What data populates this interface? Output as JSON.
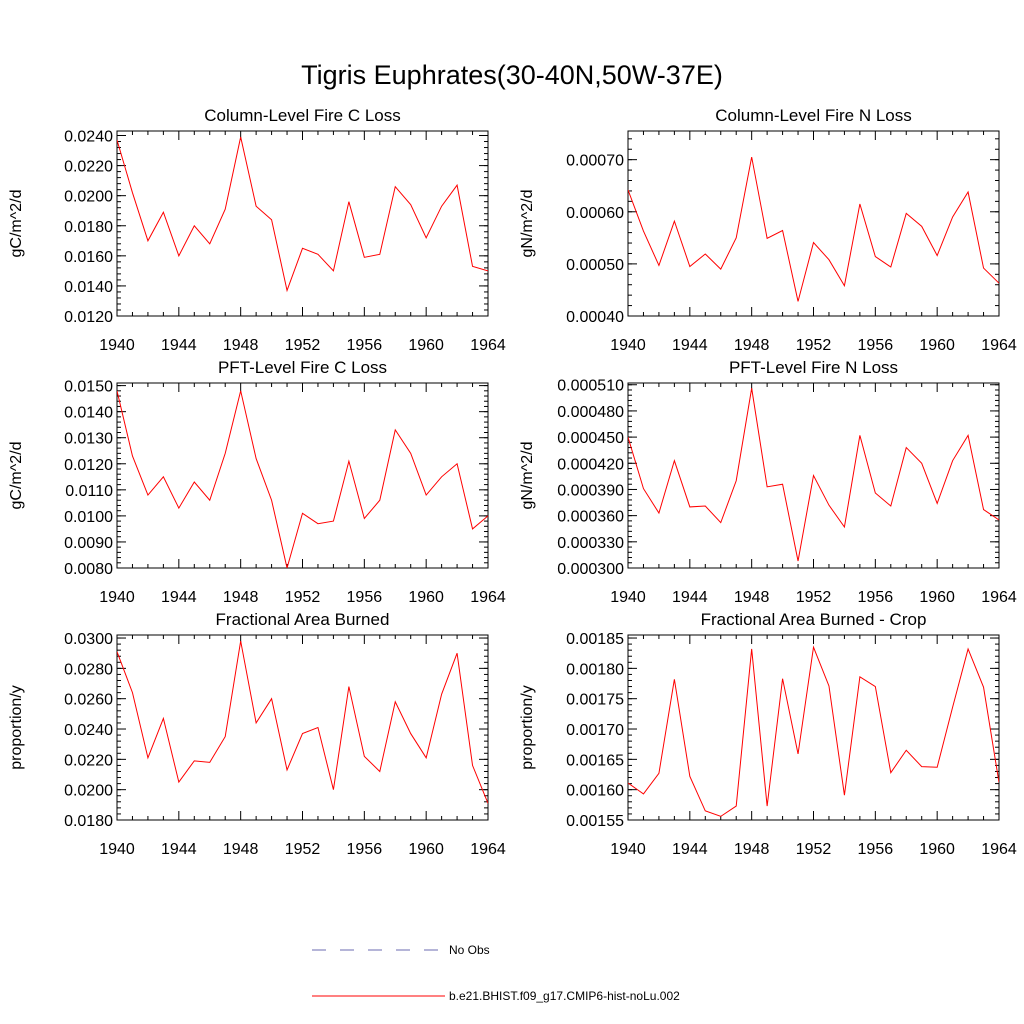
{
  "title": "Tigris Euphrates(30-40N,50W-37E)",
  "colors": {
    "model": "#ff0000",
    "obs": "#6b6bb0",
    "axis": "#000000"
  },
  "legend": {
    "obs_label": "No Obs",
    "model_label": "b.e21.BHIST.f09_g17.CMIP6-hist-noLu.002"
  },
  "chart_data": [
    {
      "type": "line",
      "title": "Column-Level Fire C Loss",
      "ylabel": "gC/m^2/d",
      "x": [
        1940,
        1941,
        1942,
        1943,
        1944,
        1945,
        1946,
        1947,
        1948,
        1949,
        1950,
        1951,
        1952,
        1953,
        1954,
        1955,
        1956,
        1957,
        1958,
        1959,
        1960,
        1961,
        1962,
        1963,
        1964
      ],
      "xlim": [
        1940,
        1964
      ],
      "xticks": [
        "1940",
        "1944",
        "1948",
        "1952",
        "1956",
        "1960",
        "1964"
      ],
      "ylim": [
        0.012,
        0.0243
      ],
      "yticks": [
        "0.0120",
        "0.0140",
        "0.0160",
        "0.0180",
        "0.0200",
        "0.0220",
        "0.0240"
      ],
      "series": [
        {
          "values": [
            0.0237,
            0.0202,
            0.017,
            0.0189,
            0.016,
            0.018,
            0.0168,
            0.0191,
            0.0239,
            0.0193,
            0.0184,
            0.0137,
            0.0165,
            0.0161,
            0.015,
            0.0196,
            0.0159,
            0.0161,
            0.0206,
            0.0194,
            0.0172,
            0.0193,
            0.0207,
            0.0153,
            0.015
          ]
        }
      ]
    },
    {
      "type": "line",
      "title": "Column-Level Fire N Loss",
      "ylabel": "gN/m^2/d",
      "x": [
        1940,
        1941,
        1942,
        1943,
        1944,
        1945,
        1946,
        1947,
        1948,
        1949,
        1950,
        1951,
        1952,
        1953,
        1954,
        1955,
        1956,
        1957,
        1958,
        1959,
        1960,
        1961,
        1962,
        1963,
        1964
      ],
      "xlim": [
        1940,
        1964
      ],
      "xticks": [
        "1940",
        "1944",
        "1948",
        "1952",
        "1956",
        "1960",
        "1964"
      ],
      "ylim": [
        0.0004,
        0.000755
      ],
      "yticks": [
        "0.00040",
        "0.00050",
        "0.00060",
        "0.00070"
      ],
      "series": [
        {
          "values": [
            0.000642,
            0.000563,
            0.000497,
            0.000582,
            0.000495,
            0.000519,
            0.00049,
            0.00055,
            0.000705,
            0.000549,
            0.000564,
            0.000428,
            0.000541,
            0.000508,
            0.000458,
            0.000615,
            0.000514,
            0.000494,
            0.000597,
            0.000572,
            0.000516,
            0.00059,
            0.000638,
            0.000492,
            0.000463
          ]
        }
      ]
    },
    {
      "type": "line",
      "title": "PFT-Level Fire C Loss",
      "ylabel": "gC/m^2/d",
      "x": [
        1940,
        1941,
        1942,
        1943,
        1944,
        1945,
        1946,
        1947,
        1948,
        1949,
        1950,
        1951,
        1952,
        1953,
        1954,
        1955,
        1956,
        1957,
        1958,
        1959,
        1960,
        1961,
        1962,
        1963,
        1964
      ],
      "xlim": [
        1940,
        1964
      ],
      "xticks": [
        "1940",
        "1944",
        "1948",
        "1952",
        "1956",
        "1960",
        "1964"
      ],
      "ylim": [
        0.008,
        0.0151
      ],
      "yticks": [
        "0.0080",
        "0.0090",
        "0.0100",
        "0.0110",
        "0.0120",
        "0.0130",
        "0.0140",
        "0.0150"
      ],
      "series": [
        {
          "values": [
            0.0148,
            0.0123,
            0.0108,
            0.0115,
            0.0103,
            0.0113,
            0.0106,
            0.0124,
            0.0148,
            0.0122,
            0.0106,
            0.008,
            0.0101,
            0.0097,
            0.0098,
            0.0121,
            0.0099,
            0.0106,
            0.0133,
            0.0124,
            0.0108,
            0.0115,
            0.012,
            0.0095,
            0.01
          ]
        }
      ]
    },
    {
      "type": "line",
      "title": "PFT-Level Fire N Loss",
      "ylabel": "gN/m^2/d",
      "x": [
        1940,
        1941,
        1942,
        1943,
        1944,
        1945,
        1946,
        1947,
        1948,
        1949,
        1950,
        1951,
        1952,
        1953,
        1954,
        1955,
        1956,
        1957,
        1958,
        1959,
        1960,
        1961,
        1962,
        1963,
        1964
      ],
      "xlim": [
        1940,
        1964
      ],
      "xticks": [
        "1940",
        "1944",
        "1948",
        "1952",
        "1956",
        "1960",
        "1964"
      ],
      "ylim": [
        0.0003,
        0.000512
      ],
      "yticks": [
        "0.000300",
        "0.000330",
        "0.000360",
        "0.000390",
        "0.000420",
        "0.000450",
        "0.000480",
        "0.000510"
      ],
      "series": [
        {
          "values": [
            0.00045,
            0.000391,
            0.000363,
            0.000423,
            0.00037,
            0.000371,
            0.000352,
            0.0004,
            0.000506,
            0.000393,
            0.000396,
            0.000308,
            0.000406,
            0.000372,
            0.000347,
            0.000452,
            0.000386,
            0.000371,
            0.000438,
            0.00042,
            0.000374,
            0.000423,
            0.000452,
            0.000367,
            0.000355
          ]
        }
      ]
    },
    {
      "type": "line",
      "title": "Fractional Area Burned",
      "ylabel": "proportion/y",
      "x": [
        1940,
        1941,
        1942,
        1943,
        1944,
        1945,
        1946,
        1947,
        1948,
        1949,
        1950,
        1951,
        1952,
        1953,
        1954,
        1955,
        1956,
        1957,
        1958,
        1959,
        1960,
        1961,
        1962,
        1963,
        1964
      ],
      "xlim": [
        1940,
        1964
      ],
      "xticks": [
        "1940",
        "1944",
        "1948",
        "1952",
        "1956",
        "1960",
        "1964"
      ],
      "ylim": [
        0.018,
        0.0302
      ],
      "yticks": [
        "0.0180",
        "0.0200",
        "0.0220",
        "0.0240",
        "0.0260",
        "0.0280",
        "0.0300"
      ],
      "series": [
        {
          "values": [
            0.0291,
            0.0264,
            0.0221,
            0.0247,
            0.0205,
            0.0219,
            0.0218,
            0.0235,
            0.0298,
            0.0244,
            0.026,
            0.0213,
            0.0237,
            0.0241,
            0.02,
            0.0268,
            0.0222,
            0.0212,
            0.0258,
            0.0237,
            0.0221,
            0.0263,
            0.029,
            0.0216,
            0.0191
          ]
        }
      ]
    },
    {
      "type": "line",
      "title": "Fractional Area Burned - Crop",
      "ylabel": "proportion/y",
      "x": [
        1940,
        1941,
        1942,
        1943,
        1944,
        1945,
        1946,
        1947,
        1948,
        1949,
        1950,
        1951,
        1952,
        1953,
        1954,
        1955,
        1956,
        1957,
        1958,
        1959,
        1960,
        1961,
        1962,
        1963,
        1964
      ],
      "xlim": [
        1940,
        1964
      ],
      "xticks": [
        "1940",
        "1944",
        "1948",
        "1952",
        "1956",
        "1960",
        "1964"
      ],
      "ylim": [
        0.00155,
        0.001855
      ],
      "yticks": [
        "0.00155",
        "0.00160",
        "0.00165",
        "0.00170",
        "0.00175",
        "0.00180",
        "0.00185"
      ],
      "series": [
        {
          "values": [
            0.001611,
            0.001593,
            0.001627,
            0.001782,
            0.001622,
            0.001565,
            0.001556,
            0.001573,
            0.001832,
            0.001573,
            0.001783,
            0.001659,
            0.001835,
            0.001771,
            0.001591,
            0.001786,
            0.00177,
            0.001628,
            0.001665,
            0.001638,
            0.001637,
            0.001736,
            0.001832,
            0.001769,
            0.001612
          ]
        }
      ]
    }
  ]
}
